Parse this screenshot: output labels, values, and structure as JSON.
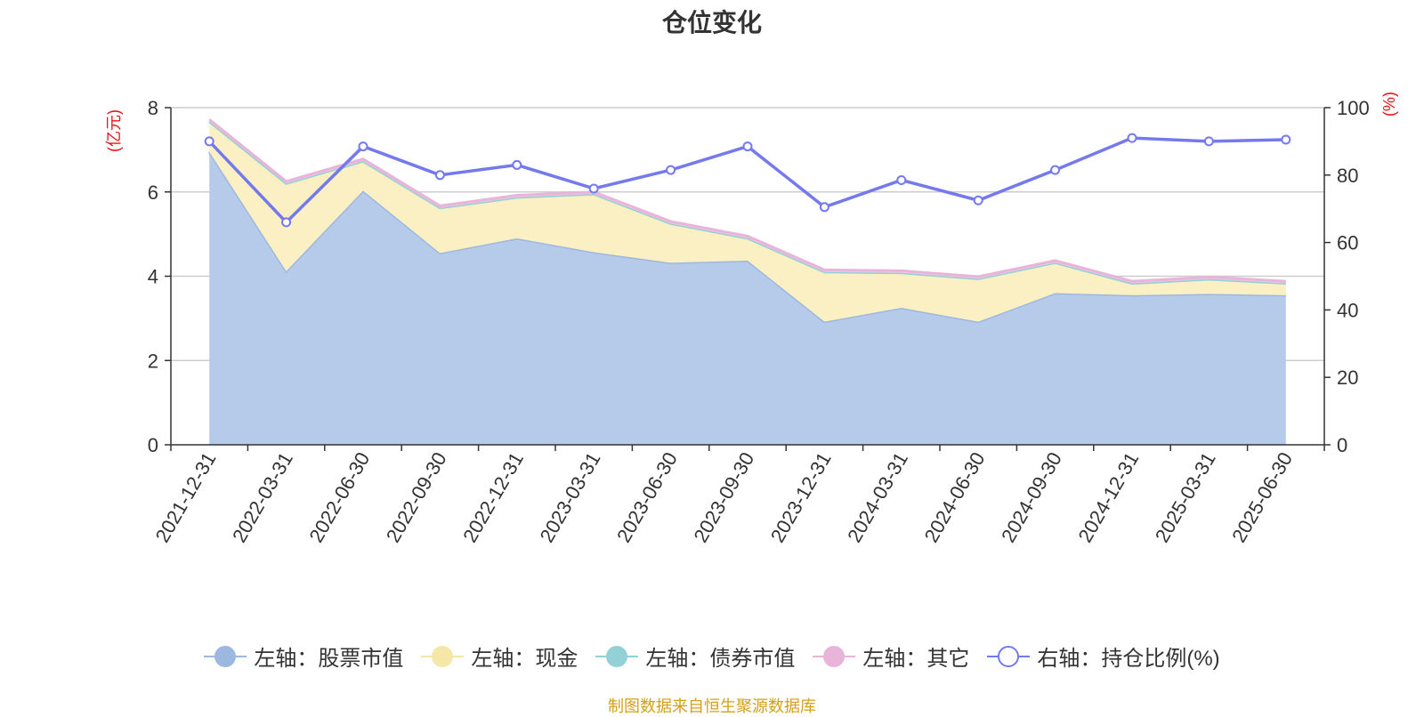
{
  "chart_data": {
    "type": "area",
    "title": "仓位变化",
    "x": [
      "2021-12-31",
      "2022-03-31",
      "2022-06-30",
      "2022-09-30",
      "2022-12-31",
      "2023-03-31",
      "2023-06-30",
      "2023-09-30",
      "2023-12-31",
      "2024-03-31",
      "2024-06-30",
      "2024-09-30",
      "2024-12-31",
      "2025-03-31",
      "2025-06-30"
    ],
    "left_axis": {
      "unit": "(亿元)",
      "ylim": [
        0,
        8
      ],
      "ticks": [
        0,
        2,
        4,
        6,
        8
      ]
    },
    "right_axis": {
      "unit": "(%)",
      "ylim": [
        0,
        100
      ],
      "ticks": [
        0,
        20,
        40,
        60,
        80,
        100
      ]
    },
    "stacked": true,
    "grid": true,
    "legend_position": "bottom",
    "series": [
      {
        "name": "左轴：股票市值",
        "axis": "left",
        "type": "area",
        "color": "#9db8e0",
        "fill": "#b6cbea",
        "values": [
          6.95,
          4.12,
          6.03,
          4.55,
          4.9,
          4.57,
          4.32,
          4.37,
          2.92,
          3.25,
          2.92,
          3.6,
          3.55,
          3.58,
          3.55
        ]
      },
      {
        "name": "左轴：现金",
        "axis": "left",
        "type": "area",
        "color": "#f5e7a8",
        "fill": "#fbf0c4",
        "values": [
          0.72,
          2.08,
          0.7,
          1.07,
          0.97,
          1.38,
          0.93,
          0.53,
          1.18,
          0.83,
          1.02,
          0.72,
          0.28,
          0.35,
          0.28
        ]
      },
      {
        "name": "左轴：债券市值",
        "axis": "left",
        "type": "area",
        "color": "#93d1d6",
        "fill": "#a9dadf",
        "values": [
          0,
          0,
          0,
          0,
          0,
          0,
          0,
          0,
          0,
          0,
          0,
          0,
          0,
          0,
          0
        ]
      },
      {
        "name": "左轴：其它",
        "axis": "left",
        "type": "area",
        "color": "#e8b4d9",
        "fill": "#f0c6e3",
        "values": [
          0.05,
          0.05,
          0.05,
          0.05,
          0.05,
          0.05,
          0.05,
          0.05,
          0.05,
          0.05,
          0.05,
          0.05,
          0.05,
          0.05,
          0.05
        ]
      },
      {
        "name": "右轴：持仓比例(%)",
        "axis": "right",
        "type": "line",
        "color": "#7479ee",
        "values": [
          90.0,
          66.0,
          88.5,
          80.0,
          83.0,
          76.0,
          81.5,
          88.5,
          70.5,
          78.5,
          72.5,
          81.5,
          91.0,
          90.0,
          90.5
        ]
      }
    ]
  },
  "source_note": "制图数据来自恒生聚源数据库"
}
